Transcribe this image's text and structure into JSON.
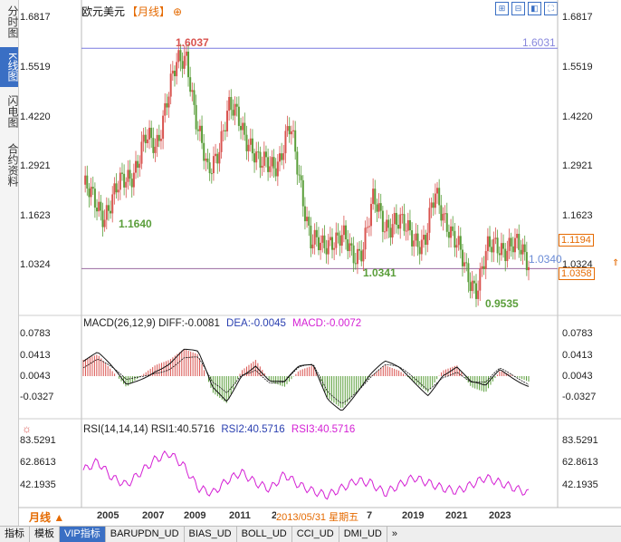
{
  "sidebar": {
    "tabs": [
      {
        "label": "分时图",
        "active": false
      },
      {
        "label": "K线图",
        "active": true
      },
      {
        "label": "闪电图",
        "active": false
      },
      {
        "label": "合约资料",
        "active": false
      }
    ]
  },
  "header": {
    "symbol": "欧元美元",
    "period": "【月线】",
    "plus": "⊕"
  },
  "toolbar": {
    "icons": [
      "zoom-in-icon",
      "zoom-out-icon",
      "reset-icon",
      "fullscreen-icon"
    ],
    "glyphs": [
      "⊞",
      "⊟",
      "◧",
      "⛶"
    ]
  },
  "price_axis": {
    "ticks": [
      "1.6817",
      "1.5519",
      "1.4220",
      "1.2921",
      "1.1623",
      "1.0324"
    ],
    "high_label": "1.6037",
    "right_line_label": "1.6031",
    "low_label_1": "1.1640",
    "low_label_2": "1.0341",
    "low_label_3": "0.9535",
    "current_label": "1.0340",
    "tag_1": "1.1194",
    "tag_2": "1.0358",
    "tag_mid": "1.0324"
  },
  "macd": {
    "header": "MACD(26,12,9)",
    "diff": "DIFF:-0.0081",
    "dea": "DEA:-0.0045",
    "macd": "MACD:-0.0072",
    "ticks": [
      "0.0783",
      "0.0413",
      "0.0043",
      "-0.0327"
    ]
  },
  "rsi": {
    "header": "RSI(14,14,14)",
    "rsi1": "RSI1:40.5716",
    "rsi2": "RSI2:40.5716",
    "rsi3": "RSI3:40.5716",
    "ticks": [
      "83.5291",
      "62.8613",
      "42.1935"
    ]
  },
  "xaxis": {
    "period_button": "月线 ▲",
    "years": [
      "2005",
      "2007",
      "2009",
      "2011",
      "2",
      "7",
      "2019",
      "2021",
      "2023"
    ],
    "date_overlay": "2013/05/31 星期五"
  },
  "bottom_tabs": [
    "指标",
    "模板",
    "VIP指标",
    "BARUPDN_UD",
    "BIAS_UD",
    "BOLL_UD",
    "CCI_UD",
    "DMI_UD"
  ],
  "bottom_more": "»",
  "colors": {
    "up": "#d9534f",
    "down": "#5a9e3a",
    "accent": "#e56a00",
    "blue": "#3a6fc4",
    "magenta": "#d41fd4"
  },
  "chart_data": {
    "type": "candlestick",
    "title": "欧元美元",
    "series_high": 1.6037,
    "series_low": 0.9535,
    "ylim": [
      0.9535,
      1.6817
    ],
    "x": [
      "2005",
      "2007",
      "2009",
      "2011",
      "2013",
      "2017",
      "2019",
      "2021",
      "2023"
    ],
    "monthly_close_approx": [
      1.25,
      1.2,
      1.18,
      1.22,
      1.26,
      1.3,
      1.36,
      1.35,
      1.47,
      1.55,
      1.59,
      1.4,
      1.27,
      1.35,
      1.44,
      1.42,
      1.37,
      1.29,
      1.31,
      1.32,
      1.39,
      1.26,
      1.1,
      1.08,
      1.12,
      1.11,
      1.06,
      1.1,
      1.2,
      1.15,
      1.16,
      1.13,
      1.12,
      1.1,
      1.22,
      1.17,
      1.09,
      1.02,
      0.99,
      1.07,
      1.1,
      1.09,
      1.08,
      1.06
    ],
    "macd_hist_approx": [
      0.03,
      0.04,
      0.01,
      -0.02,
      0.0,
      0.02,
      0.03,
      0.05,
      0.04,
      -0.03,
      -0.05,
      0.01,
      0.03,
      -0.01,
      -0.02,
      0.01,
      0.02,
      -0.04,
      -0.06,
      -0.03,
      0.0,
      0.02,
      0.01,
      -0.01,
      -0.03,
      0.01,
      0.02,
      -0.02,
      -0.03,
      0.01,
      0.0,
      -0.01
    ],
    "rsi_approx": [
      62,
      70,
      55,
      48,
      60,
      72,
      78,
      66,
      45,
      40,
      52,
      60,
      50,
      44,
      58,
      48,
      42,
      38,
      45,
      52,
      50,
      40,
      48,
      55,
      50,
      45,
      42,
      48,
      55,
      50,
      45,
      40
    ]
  }
}
